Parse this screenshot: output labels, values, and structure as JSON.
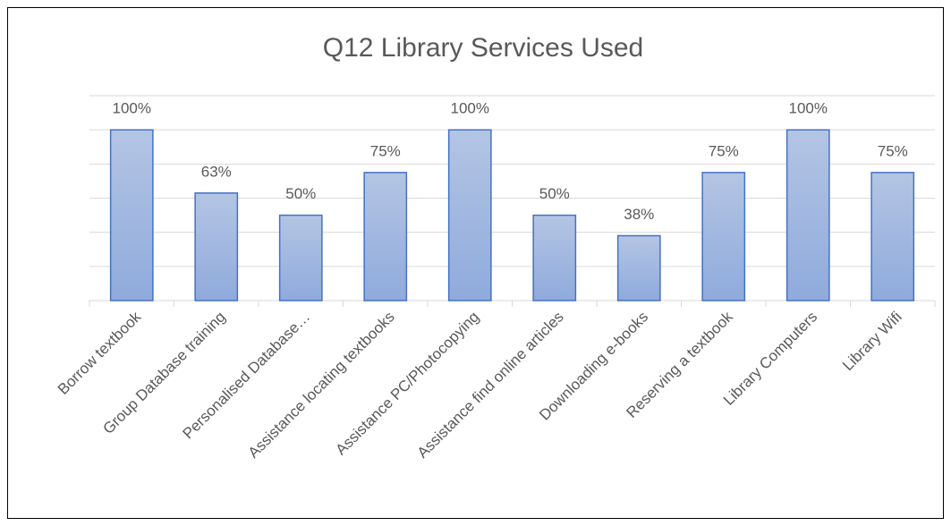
{
  "chart_data": {
    "type": "bar",
    "title": "Q12 Library Services Used",
    "categories": [
      "Borrow textbook",
      "Group Database training",
      "Personalised Database…",
      "Assistance locating textbooks",
      "Assistance PC/Photocopying",
      "Assistance find online articles",
      "Downloading e-books",
      "Reserving a textbook",
      "Library Computers",
      "Library Wifi"
    ],
    "values": [
      100,
      63,
      50,
      75,
      100,
      50,
      38,
      75,
      100,
      75
    ],
    "value_labels": [
      "100%",
      "63%",
      "50%",
      "75%",
      "100%",
      "50%",
      "38%",
      "75%",
      "100%",
      "75%"
    ],
    "color": "#4472c4",
    "ylim": [
      0,
      120
    ],
    "yticks": [
      0,
      20,
      40,
      60,
      80,
      100,
      120
    ],
    "grid": true
  }
}
